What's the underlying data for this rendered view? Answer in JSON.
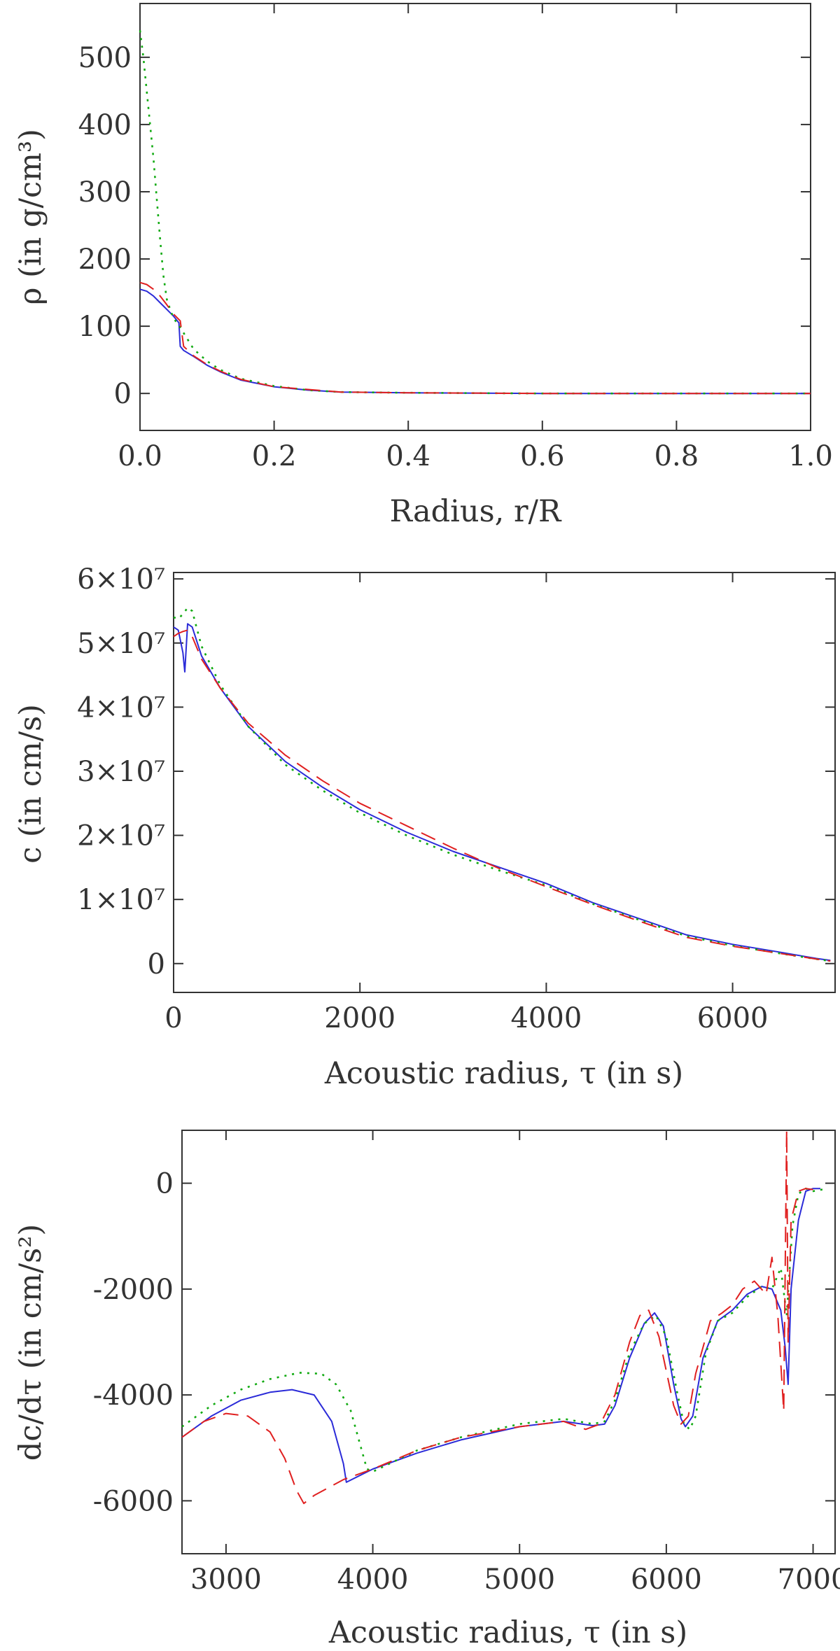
{
  "chart_data": [
    {
      "type": "line",
      "xlabel": "Radius, r/R",
      "ylabel": "ρ (in g/cm³)",
      "xlim": [
        0.0,
        1.0
      ],
      "ylim": [
        -55,
        580
      ],
      "xticks": [
        0.0,
        0.2,
        0.4,
        0.6,
        0.8,
        1.0
      ],
      "xtick_labels": [
        "0.0",
        "0.2",
        "0.4",
        "0.6",
        "0.8",
        "1.0"
      ],
      "yticks": [
        0,
        100,
        200,
        300,
        400,
        500
      ],
      "ytick_labels": [
        "0",
        "100",
        "200",
        "300",
        "400",
        "500"
      ],
      "series": [
        {
          "style": "solid",
          "color": "#2b2bd8",
          "x": [
            0.0,
            0.01,
            0.02,
            0.03,
            0.04,
            0.05,
            0.058,
            0.06,
            0.065,
            0.08,
            0.1,
            0.12,
            0.15,
            0.2,
            0.25,
            0.3,
            0.4,
            0.6,
            0.8,
            1.0
          ],
          "y": [
            155,
            152,
            145,
            135,
            125,
            115,
            105,
            70,
            64,
            55,
            42,
            32,
            20,
            10,
            5,
            2,
            1,
            0,
            0,
            0
          ]
        },
        {
          "style": "dotted",
          "color": "#11aa11",
          "x": [
            0.0,
            0.005,
            0.01,
            0.015,
            0.02,
            0.025,
            0.03,
            0.035,
            0.04,
            0.045,
            0.05,
            0.06,
            0.07,
            0.08,
            0.1,
            0.12,
            0.15,
            0.2,
            0.25,
            0.3,
            0.4,
            0.6,
            0.8,
            1.0
          ],
          "y": [
            540,
            500,
            450,
            400,
            350,
            290,
            230,
            175,
            140,
            125,
            112,
            98,
            82,
            66,
            48,
            35,
            22,
            11,
            5,
            2,
            1,
            0,
            0,
            0
          ]
        },
        {
          "style": "dashed",
          "color": "#e02020",
          "x": [
            0.0,
            0.01,
            0.02,
            0.03,
            0.04,
            0.05,
            0.06,
            0.065,
            0.08,
            0.1,
            0.12,
            0.15,
            0.2,
            0.3,
            0.4,
            0.6,
            0.8,
            1.0
          ],
          "y": [
            165,
            162,
            155,
            145,
            132,
            118,
            108,
            70,
            56,
            43,
            33,
            21,
            10,
            2,
            1,
            0,
            0,
            0
          ]
        }
      ]
    },
    {
      "type": "line",
      "xlabel": "Acoustic radius, τ (in s)",
      "ylabel": "c (in cm/s)",
      "xlim": [
        0,
        7100
      ],
      "ylim": [
        -4500000,
        61000000
      ],
      "xticks": [
        0,
        2000,
        4000,
        6000
      ],
      "xtick_labels": [
        "0",
        "2000",
        "4000",
        "6000"
      ],
      "yticks": [
        0,
        10000000,
        20000000,
        30000000,
        40000000,
        50000000,
        60000000
      ],
      "ytick_labels": [
        "0",
        "1×10⁷",
        "2×10⁷",
        "3×10⁷",
        "4×10⁷",
        "5×10⁷",
        "6×10⁷"
      ],
      "series": [
        {
          "style": "solid",
          "color": "#2b2bd8",
          "x": [
            0,
            50,
            100,
            120,
            150,
            200,
            300,
            500,
            800,
            1200,
            1600,
            2000,
            2500,
            3000,
            3500,
            4000,
            4500,
            5000,
            5500,
            6000,
            6500,
            6900,
            7050
          ],
          "y": [
            52500000,
            52000000,
            48500000,
            45500000,
            53000000,
            52500000,
            48000000,
            43000000,
            37000000,
            31500000,
            27500000,
            24000000,
            20500000,
            17500000,
            15000000,
            12500000,
            9500000,
            7000000,
            4500000,
            3000000,
            1800000,
            800000,
            500000
          ]
        },
        {
          "style": "dotted",
          "color": "#11aa11",
          "x": [
            0,
            50,
            100,
            150,
            200,
            300,
            500,
            800,
            1200,
            1600,
            2000,
            2500,
            3000,
            3500,
            4000,
            4500,
            5000,
            5500,
            6000,
            6500,
            6900,
            7050
          ],
          "y": [
            54000000,
            53800000,
            54500000,
            55500000,
            55000000,
            49500000,
            43500000,
            37000000,
            31000000,
            27000000,
            23500000,
            20000000,
            17000000,
            14500000,
            12200000,
            9300000,
            6800000,
            4300000,
            2800000,
            1600000,
            700000,
            400000
          ]
        },
        {
          "style": "dashed",
          "color": "#e02020",
          "x": [
            0,
            50,
            100,
            150,
            200,
            300,
            500,
            800,
            1200,
            1600,
            2000,
            2500,
            3000,
            3500,
            4000,
            4500,
            5000,
            5500,
            6000,
            6500,
            6900,
            7050
          ],
          "y": [
            51000000,
            51500000,
            51800000,
            52000000,
            51000000,
            47500000,
            43000000,
            37500000,
            32500000,
            28500000,
            25000000,
            21500000,
            18000000,
            14800000,
            12000000,
            9200000,
            6600000,
            4100000,
            2700000,
            1600000,
            700000,
            400000
          ]
        }
      ]
    },
    {
      "type": "line",
      "xlabel": "Acoustic radius, τ (in s)",
      "ylabel": "dc/dτ (in cm/s²)",
      "xlim": [
        2700,
        7150
      ],
      "ylim": [
        -7000,
        1000
      ],
      "xticks": [
        3000,
        4000,
        5000,
        6000,
        7000
      ],
      "xtick_labels": [
        "3000",
        "4000",
        "5000",
        "6000",
        "7000"
      ],
      "yticks": [
        -6000,
        -4000,
        -2000,
        0
      ],
      "ytick_labels": [
        "-6000",
        "-4000",
        "-2000",
        "0"
      ],
      "series": [
        {
          "style": "solid",
          "color": "#2b2bd8",
          "x": [
            2700,
            2900,
            3100,
            3300,
            3450,
            3600,
            3720,
            3800,
            3820,
            4000,
            4300,
            4600,
            5000,
            5300,
            5500,
            5580,
            5650,
            5750,
            5850,
            5920,
            5980,
            6050,
            6100,
            6130,
            6180,
            6250,
            6350,
            6450,
            6550,
            6650,
            6720,
            6780,
            6810,
            6830,
            6850,
            6900,
            6950,
            7000,
            7050
          ],
          "y": [
            -4800,
            -4400,
            -4100,
            -3950,
            -3900,
            -4000,
            -4500,
            -5300,
            -5650,
            -5400,
            -5100,
            -4850,
            -4600,
            -4500,
            -4580,
            -4550,
            -4200,
            -3300,
            -2650,
            -2450,
            -2700,
            -3800,
            -4450,
            -4600,
            -4400,
            -3300,
            -2600,
            -2400,
            -2100,
            -1950,
            -2000,
            -2400,
            -3100,
            -3800,
            -2000,
            -700,
            -150,
            -100,
            -100
          ]
        },
        {
          "style": "dotted",
          "color": "#11aa11",
          "x": [
            2700,
            2900,
            3100,
            3300,
            3500,
            3650,
            3750,
            3850,
            3920,
            3960,
            4000,
            4300,
            4600,
            5000,
            5300,
            5500,
            5580,
            5650,
            5750,
            5850,
            5930,
            6000,
            6070,
            6120,
            6160,
            6200,
            6270,
            6350,
            6450,
            6550,
            6650,
            6720,
            6780,
            6820,
            6860,
            6900,
            6950,
            7000,
            7100
          ],
          "y": [
            -4600,
            -4200,
            -3900,
            -3700,
            -3580,
            -3600,
            -3800,
            -4300,
            -5000,
            -5400,
            -5450,
            -5050,
            -4800,
            -4550,
            -4450,
            -4550,
            -4500,
            -4100,
            -3200,
            -2650,
            -2500,
            -2900,
            -3900,
            -4550,
            -4650,
            -4400,
            -3200,
            -2600,
            -2450,
            -2150,
            -1950,
            -2000,
            -1600,
            -2500,
            -800,
            -200,
            -100,
            -150,
            -100
          ]
        },
        {
          "style": "dashed",
          "color": "#e02020",
          "x": [
            2700,
            2850,
            3000,
            3150,
            3300,
            3400,
            3480,
            3530,
            3600,
            3800,
            4000,
            4300,
            4600,
            5000,
            5300,
            5450,
            5550,
            5650,
            5750,
            5820,
            5880,
            5950,
            6050,
            6100,
            6150,
            6200,
            6300,
            6380,
            6450,
            6520,
            6600,
            6680,
            6720,
            6760,
            6800,
            6820,
            6830,
            6850,
            6900,
            6950,
            7000
          ],
          "y": [
            -4800,
            -4500,
            -4350,
            -4400,
            -4700,
            -5200,
            -5800,
            -6050,
            -5900,
            -5600,
            -5400,
            -5050,
            -4800,
            -4600,
            -4500,
            -4650,
            -4550,
            -4000,
            -3000,
            -2500,
            -2400,
            -2900,
            -4200,
            -4550,
            -4400,
            -3600,
            -2600,
            -2450,
            -2300,
            -2000,
            -1850,
            -2100,
            -1400,
            -2500,
            -4300,
            1000,
            -3000,
            -700,
            -150,
            -100,
            -120
          ]
        }
      ]
    }
  ]
}
